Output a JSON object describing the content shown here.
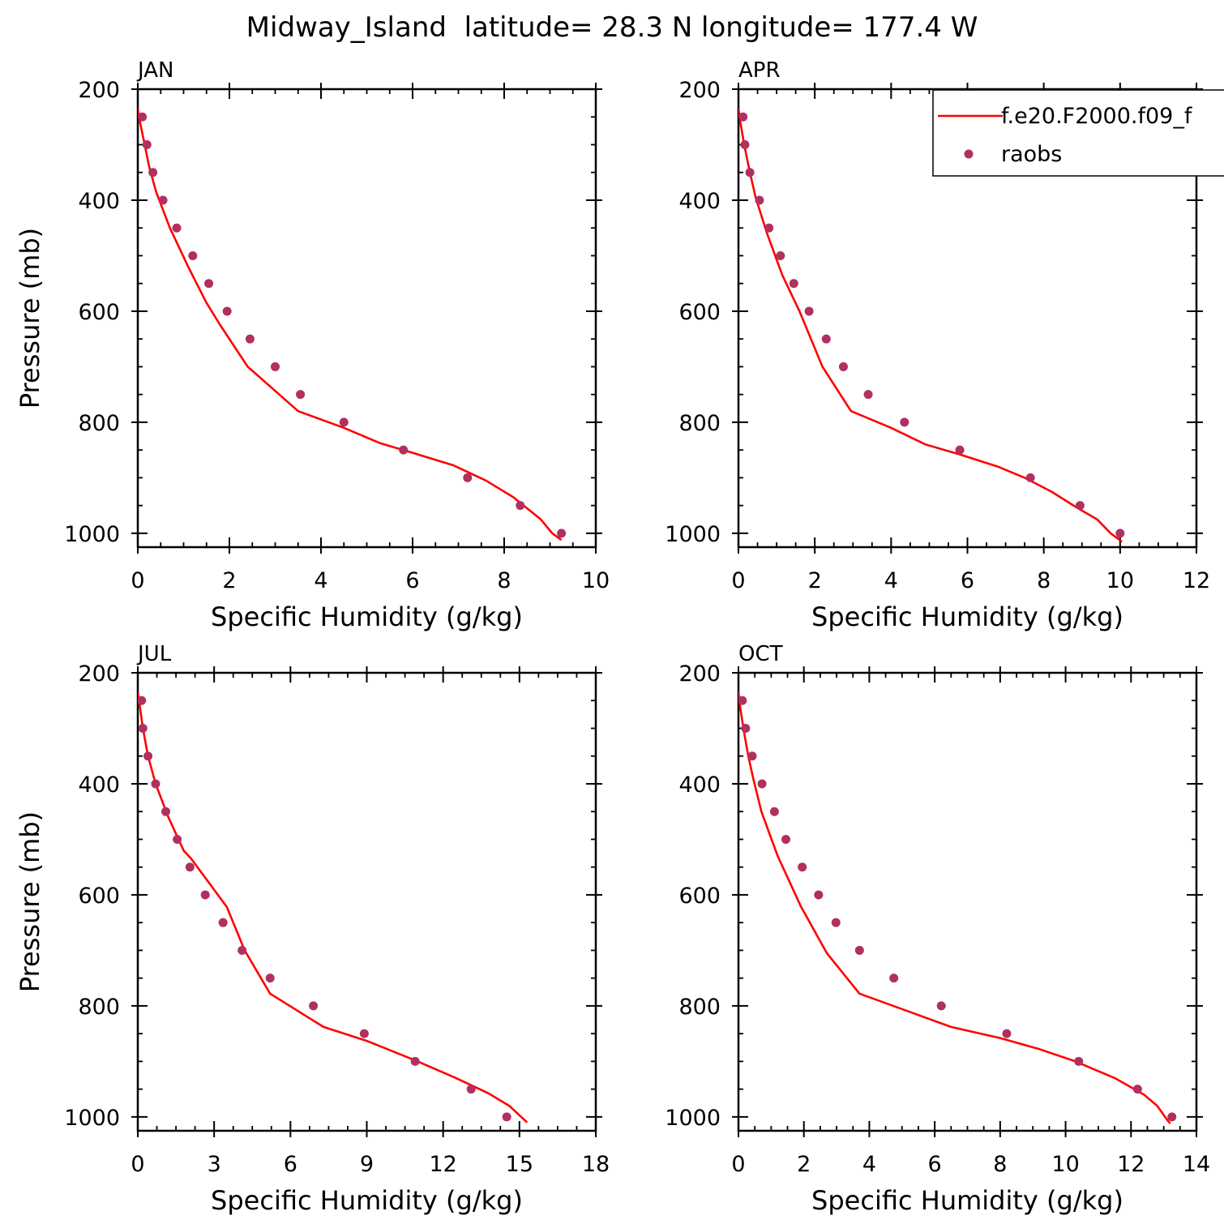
{
  "figure": {
    "title": "Midway_Island  latitude= 28.3 N longitude= 177.4 W"
  },
  "legend": {
    "placement": "top-right of APR panel",
    "model_label": "f.e20.F2000.f09_f",
    "obs_label": "raobs"
  },
  "colors": {
    "model_line": "#ff0000",
    "obs_marker": "#b03060",
    "axes": "#000000"
  },
  "chart_data": [
    {
      "type": "line",
      "panel": "JAN",
      "title": "JAN",
      "xlabel": "Specific Humidity (g/kg)",
      "ylabel": "Pressure (mb)",
      "xlim": [
        0,
        10
      ],
      "ylim": [
        200,
        1025
      ],
      "y_inverted": true,
      "xticks": [
        0,
        2,
        4,
        6,
        8,
        10
      ],
      "yticks": [
        200,
        400,
        600,
        800,
        1000
      ],
      "series": [
        {
          "name": "f.e20.F2000.f09_f",
          "kind": "line",
          "points": [
            [
              0.0,
              235
            ],
            [
              0.05,
              260
            ],
            [
              0.15,
              300
            ],
            [
              0.25,
              340
            ],
            [
              0.4,
              385
            ],
            [
              0.7,
              450
            ],
            [
              1.1,
              520
            ],
            [
              1.5,
              585
            ],
            [
              1.8,
              625
            ],
            [
              2.4,
              700
            ],
            [
              3.5,
              780
            ],
            [
              4.5,
              810
            ],
            [
              5.3,
              838
            ],
            [
              6.0,
              855
            ],
            [
              6.9,
              878
            ],
            [
              7.6,
              905
            ],
            [
              8.2,
              935
            ],
            [
              8.5,
              955
            ],
            [
              8.8,
              975
            ],
            [
              9.05,
              1000
            ],
            [
              9.25,
              1012
            ]
          ]
        },
        {
          "name": "raobs",
          "kind": "scatter",
          "points": [
            [
              0.1,
              250
            ],
            [
              0.2,
              300
            ],
            [
              0.33,
              350
            ],
            [
              0.55,
              400
            ],
            [
              0.85,
              450
            ],
            [
              1.2,
              500
            ],
            [
              1.55,
              550
            ],
            [
              1.95,
              600
            ],
            [
              2.45,
              650
            ],
            [
              3.0,
              700
            ],
            [
              3.55,
              750
            ],
            [
              4.5,
              800
            ],
            [
              5.8,
              850
            ],
            [
              7.2,
              900
            ],
            [
              8.35,
              950
            ],
            [
              9.25,
              1000
            ]
          ]
        }
      ]
    },
    {
      "type": "line",
      "panel": "APR",
      "title": "APR",
      "xlabel": "Specific Humidity (g/kg)",
      "ylabel": "",
      "xlim": [
        0,
        12
      ],
      "ylim": [
        200,
        1025
      ],
      "y_inverted": true,
      "xticks": [
        0,
        2,
        4,
        6,
        8,
        10,
        12
      ],
      "yticks": [
        200,
        400,
        600,
        800,
        1000
      ],
      "series": [
        {
          "name": "f.e20.F2000.f09_f",
          "kind": "line",
          "points": [
            [
              0.0,
              235
            ],
            [
              0.05,
              260
            ],
            [
              0.15,
              300
            ],
            [
              0.3,
              350
            ],
            [
              0.45,
              395
            ],
            [
              0.75,
              460
            ],
            [
              1.15,
              535
            ],
            [
              1.6,
              600
            ],
            [
              2.2,
              700
            ],
            [
              2.95,
              780
            ],
            [
              4.0,
              810
            ],
            [
              4.9,
              840
            ],
            [
              5.8,
              858
            ],
            [
              6.8,
              880
            ],
            [
              7.5,
              900
            ],
            [
              8.2,
              925
            ],
            [
              8.9,
              955
            ],
            [
              9.4,
              975
            ],
            [
              9.75,
              1000
            ],
            [
              10.05,
              1015
            ]
          ]
        },
        {
          "name": "raobs",
          "kind": "scatter",
          "points": [
            [
              0.12,
              250
            ],
            [
              0.17,
              300
            ],
            [
              0.3,
              350
            ],
            [
              0.55,
              400
            ],
            [
              0.8,
              450
            ],
            [
              1.1,
              500
            ],
            [
              1.45,
              550
            ],
            [
              1.85,
              600
            ],
            [
              2.3,
              650
            ],
            [
              2.75,
              700
            ],
            [
              3.4,
              750
            ],
            [
              4.35,
              800
            ],
            [
              5.8,
              850
            ],
            [
              7.65,
              900
            ],
            [
              8.95,
              950
            ],
            [
              10.0,
              1000
            ]
          ]
        }
      ]
    },
    {
      "type": "line",
      "panel": "JUL",
      "title": "JUL",
      "xlabel": "Specific Humidity (g/kg)",
      "ylabel": "Pressure (mb)",
      "xlim": [
        0,
        18
      ],
      "ylim": [
        200,
        1025
      ],
      "y_inverted": true,
      "xticks": [
        0,
        3,
        6,
        9,
        12,
        15,
        18
      ],
      "yticks": [
        200,
        400,
        600,
        800,
        1000
      ],
      "series": [
        {
          "name": "f.e20.F2000.f09_f",
          "kind": "line",
          "points": [
            [
              0.0,
              235
            ],
            [
              0.08,
              260
            ],
            [
              0.2,
              300
            ],
            [
              0.4,
              350
            ],
            [
              0.7,
              400
            ],
            [
              1.2,
              460
            ],
            [
              1.8,
              520
            ],
            [
              2.1,
              535
            ],
            [
              3.5,
              622
            ],
            [
              4.2,
              700
            ],
            [
              5.2,
              778
            ],
            [
              7.3,
              838
            ],
            [
              9.0,
              863
            ],
            [
              11.0,
              900
            ],
            [
              12.5,
              930
            ],
            [
              13.8,
              958
            ],
            [
              14.6,
              980
            ],
            [
              15.3,
              1010
            ]
          ]
        },
        {
          "name": "raobs",
          "kind": "scatter",
          "points": [
            [
              0.15,
              250
            ],
            [
              0.2,
              300
            ],
            [
              0.4,
              350
            ],
            [
              0.7,
              400
            ],
            [
              1.1,
              450
            ],
            [
              1.55,
              500
            ],
            [
              2.05,
              550
            ],
            [
              2.65,
              600
            ],
            [
              3.35,
              650
            ],
            [
              4.1,
              700
            ],
            [
              5.2,
              750
            ],
            [
              6.9,
              800
            ],
            [
              8.9,
              850
            ],
            [
              10.9,
              900
            ],
            [
              13.1,
              950
            ],
            [
              14.5,
              1000
            ]
          ]
        }
      ]
    },
    {
      "type": "line",
      "panel": "OCT",
      "title": "OCT",
      "xlabel": "Specific Humidity (g/kg)",
      "ylabel": "",
      "xlim": [
        0,
        14
      ],
      "ylim": [
        200,
        1025
      ],
      "y_inverted": true,
      "xticks": [
        0,
        2,
        4,
        6,
        8,
        10,
        12,
        14
      ],
      "yticks": [
        200,
        400,
        600,
        800,
        1000
      ],
      "series": [
        {
          "name": "f.e20.F2000.f09_f",
          "kind": "line",
          "points": [
            [
              0.0,
              235
            ],
            [
              0.05,
              260
            ],
            [
              0.15,
              300
            ],
            [
              0.3,
              350
            ],
            [
              0.45,
              390
            ],
            [
              0.7,
              450
            ],
            [
              1.2,
              530
            ],
            [
              1.9,
              620
            ],
            [
              2.7,
              705
            ],
            [
              3.7,
              778
            ],
            [
              5.2,
              810
            ],
            [
              6.5,
              838
            ],
            [
              8.0,
              858
            ],
            [
              9.2,
              878
            ],
            [
              10.3,
              900
            ],
            [
              11.5,
              930
            ],
            [
              12.4,
              960
            ],
            [
              12.8,
              980
            ],
            [
              13.1,
              1005
            ],
            [
              13.2,
              1012
            ]
          ]
        },
        {
          "name": "raobs",
          "kind": "scatter",
          "points": [
            [
              0.12,
              250
            ],
            [
              0.22,
              300
            ],
            [
              0.42,
              350
            ],
            [
              0.72,
              400
            ],
            [
              1.1,
              450
            ],
            [
              1.45,
              500
            ],
            [
              1.95,
              550
            ],
            [
              2.45,
              600
            ],
            [
              2.98,
              650
            ],
            [
              3.7,
              700
            ],
            [
              4.75,
              750
            ],
            [
              6.2,
              800
            ],
            [
              8.2,
              850
            ],
            [
              10.4,
              900
            ],
            [
              12.2,
              950
            ],
            [
              13.25,
              1000
            ]
          ]
        }
      ]
    }
  ]
}
